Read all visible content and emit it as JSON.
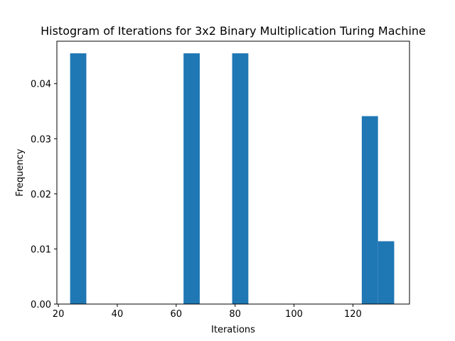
{
  "chart_data": {
    "type": "bar",
    "title": "Histogram of Iterations for 3x2 Binary Multiplication Turing Machine",
    "xlabel": "Iterations",
    "ylabel": "Frequency",
    "xlim": [
      19.5,
      139.2
    ],
    "ylim": [
      0,
      0.0477
    ],
    "xticks": [
      20,
      40,
      60,
      80,
      100,
      120
    ],
    "xtick_labels": [
      "20",
      "40",
      "60",
      "80",
      "100",
      "120"
    ],
    "yticks": [
      0,
      0.01,
      0.02,
      0.03,
      0.04
    ],
    "ytick_labels": [
      "0.00",
      "0.01",
      "0.02",
      "0.03",
      "0.04"
    ],
    "grid": false,
    "bar_color": "#1f77b4",
    "bins": [
      {
        "x0": 24.0,
        "x1": 29.5,
        "value": 0.0455
      },
      {
        "x0": 62.5,
        "x1": 68.0,
        "value": 0.0455
      },
      {
        "x0": 79.0,
        "x1": 84.5,
        "value": 0.0455
      },
      {
        "x0": 123.0,
        "x1": 128.5,
        "value": 0.0341
      },
      {
        "x0": 128.5,
        "x1": 134.0,
        "value": 0.0114
      }
    ]
  }
}
